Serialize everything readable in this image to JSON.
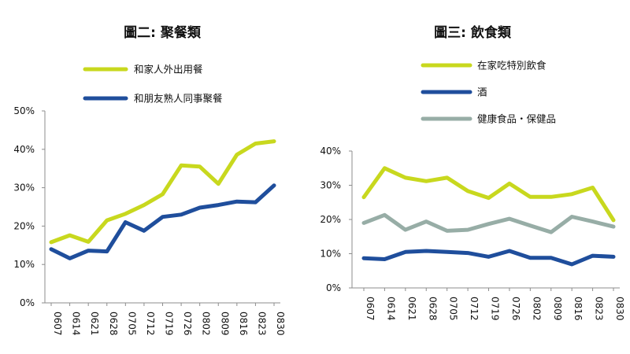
{
  "chart_data": [
    {
      "type": "line",
      "title": "圖二: 聚餐類",
      "categories": [
        "0607",
        "0614",
        "0621",
        "0628",
        "0705",
        "0712",
        "0719",
        "0726",
        "0802",
        "0809",
        "0816",
        "0823",
        "0830"
      ],
      "ylim": [
        0,
        50
      ],
      "yticks": [
        "0%",
        "10%",
        "20%",
        "30%",
        "40%",
        "50%"
      ],
      "grid": false,
      "legend_position": "top",
      "series": [
        {
          "name": "和家人外出用餐",
          "color": "#c8d81e",
          "values": [
            15.8,
            17.6,
            15.9,
            21.5,
            23.2,
            25.5,
            28.3,
            35.8,
            35.5,
            31.0,
            38.6,
            41.5,
            42.1
          ]
        },
        {
          "name": "和朋友熟人同事聚餐",
          "color": "#1f4e9c",
          "values": [
            14.0,
            11.6,
            13.6,
            13.4,
            21.0,
            18.8,
            22.4,
            23.0,
            24.8,
            25.5,
            26.4,
            26.2,
            30.6
          ]
        }
      ]
    },
    {
      "type": "line",
      "title": "圖三: 飲食類",
      "categories": [
        "0607",
        "0614",
        "0621",
        "0628",
        "0705",
        "0712",
        "0719",
        "0726",
        "0802",
        "0809",
        "0816",
        "0823",
        "0830"
      ],
      "ylim": [
        0,
        40
      ],
      "yticks": [
        "0%",
        "10%",
        "20%",
        "30%",
        "40%"
      ],
      "grid": false,
      "legend_position": "top",
      "series": [
        {
          "name": "在家吃特別飲食",
          "color": "#c8d81e",
          "values": [
            26.5,
            35.0,
            32.2,
            31.2,
            32.2,
            28.3,
            26.3,
            30.5,
            26.6,
            26.6,
            27.4,
            29.3,
            19.8
          ]
        },
        {
          "name": "酒",
          "color": "#1f4e9c",
          "values": [
            8.7,
            8.4,
            10.5,
            10.8,
            10.5,
            10.2,
            9.1,
            10.8,
            8.8,
            8.8,
            6.9,
            9.4,
            9.1
          ]
        },
        {
          "name": "健康食品・保健品",
          "color": "#97ada6",
          "values": [
            19.0,
            21.3,
            17.0,
            19.4,
            16.7,
            17.0,
            18.7,
            20.2,
            18.2,
            16.3,
            20.8,
            19.4,
            17.9
          ]
        }
      ]
    }
  ]
}
